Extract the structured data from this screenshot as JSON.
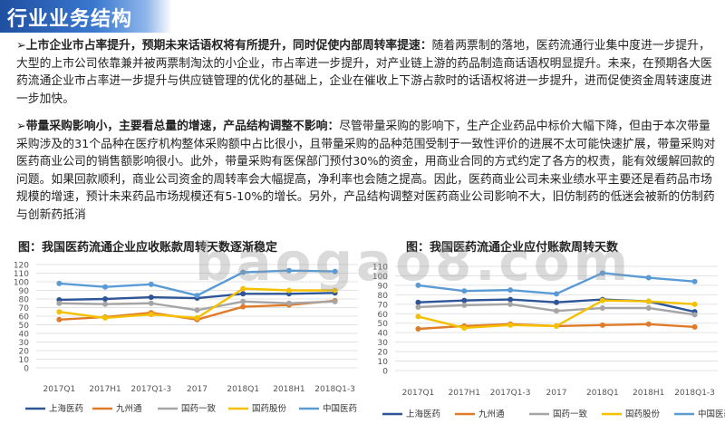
{
  "page": {
    "title": "行业业务结构",
    "p1_lead": "➢上市企业市占率提升，预期未来话语权将有所提升，同时促使内部周转率提速：",
    "p1_body": "随着两票制的落地，医药流通行业集中度进一步提升，大型的上市公司依靠兼并被两票制淘汰的小企业，市占率进一步提升，对产业链上游的药品制造商话语权明显提升。未来，在预期各大医药流通企业市占率进一步提升与供应链管理的优化的基础上，企业在催收上下游占款时的话语权将进一步提升，进而促使资金周转速度进一步加快。",
    "p2_lead": "➢带量采购影响小，主要看总量的增速，产品结构调整不影响：",
    "p2_body": "尽管带量采购的影响下，生产企业药品中标价大幅下降，但由于本次带量采购涉及的31个品种在医疗机构整体采购额中占比很小，且带量采购的品种范围受制于一致性评价的进展不太可能快速扩展，带量采购对医药商业公司的销售额影响很小。此外，带量采购有医保部门预付30%的资金，用商业合同的方式约定了各方的权责，能有效缓解回款的问题。如果回款顺利，商业公司资金的周转率会大幅提高，净利率也会随之提高。因此，医药商业公司未来业绩水平主要还是看药品市场规模的增速，预计未来药品市场规模还有5-10%的增长。另外，产品结构调整对医药商业公司影响不大，旧仿制药的低迷会被新的仿制药与创新药抵消",
    "watermark": "baogao8.com"
  },
  "chart_data": [
    {
      "type": "line",
      "title": "图：我国医药流通企业应收账款周转天数逐渐稳定",
      "categories": [
        "2017Q1",
        "2017H1",
        "2017Q1-3",
        "2017",
        "2018Q1",
        "2018H1",
        "2018Q1-3"
      ],
      "ylim": [
        0,
        120
      ],
      "yticks": [
        0,
        10,
        20,
        30,
        40,
        50,
        60,
        70,
        80,
        90,
        100,
        110,
        120
      ],
      "grid": true,
      "legend_position": "bottom",
      "series": [
        {
          "name": "上海医药",
          "color": "#2e5597",
          "values": [
            79,
            80,
            82,
            81,
            86,
            86,
            87
          ]
        },
        {
          "name": "九州通",
          "color": "#e07b2a",
          "values": [
            56,
            59,
            64,
            56,
            71,
            73,
            78
          ]
        },
        {
          "name": "国药一致",
          "color": "#a5a5a5",
          "values": [
            75,
            74,
            75,
            67,
            77,
            75,
            77
          ]
        },
        {
          "name": "国药股份",
          "color": "#f5c000",
          "values": [
            65,
            58,
            62,
            58,
            92,
            90,
            90
          ]
        },
        {
          "name": "中国医药",
          "color": "#5b9bd5",
          "values": [
            98,
            94,
            97,
            84,
            111,
            113,
            112
          ]
        }
      ]
    },
    {
      "type": "line",
      "title": "图：我国医药流通企业应付账款周转天数",
      "categories": [
        "2017Q1",
        "2017H1",
        "2017Q1-3",
        "2017",
        "2018Q1",
        "2018H1",
        "2018Q1-3"
      ],
      "ylim": [
        0,
        110
      ],
      "yticks": [
        0,
        10,
        20,
        30,
        40,
        50,
        60,
        70,
        80,
        90,
        100,
        110
      ],
      "grid": true,
      "legend_position": "bottom",
      "series": [
        {
          "name": "上海医药",
          "color": "#2e5597",
          "values": [
            72,
            74,
            75,
            72,
            75,
            73,
            62
          ]
        },
        {
          "name": "九州通",
          "color": "#e07b2a",
          "values": [
            44,
            47,
            49,
            47,
            48,
            49,
            46
          ]
        },
        {
          "name": "国药一致",
          "color": "#a5a5a5",
          "values": [
            67,
            69,
            70,
            63,
            66,
            66,
            59
          ]
        },
        {
          "name": "国药股份",
          "color": "#f5c000",
          "values": [
            57,
            45,
            48,
            47,
            74,
            73,
            70
          ]
        },
        {
          "name": "中国医药",
          "color": "#5b9bd5",
          "values": [
            90,
            84,
            85,
            81,
            103,
            98,
            94
          ]
        }
      ]
    }
  ]
}
